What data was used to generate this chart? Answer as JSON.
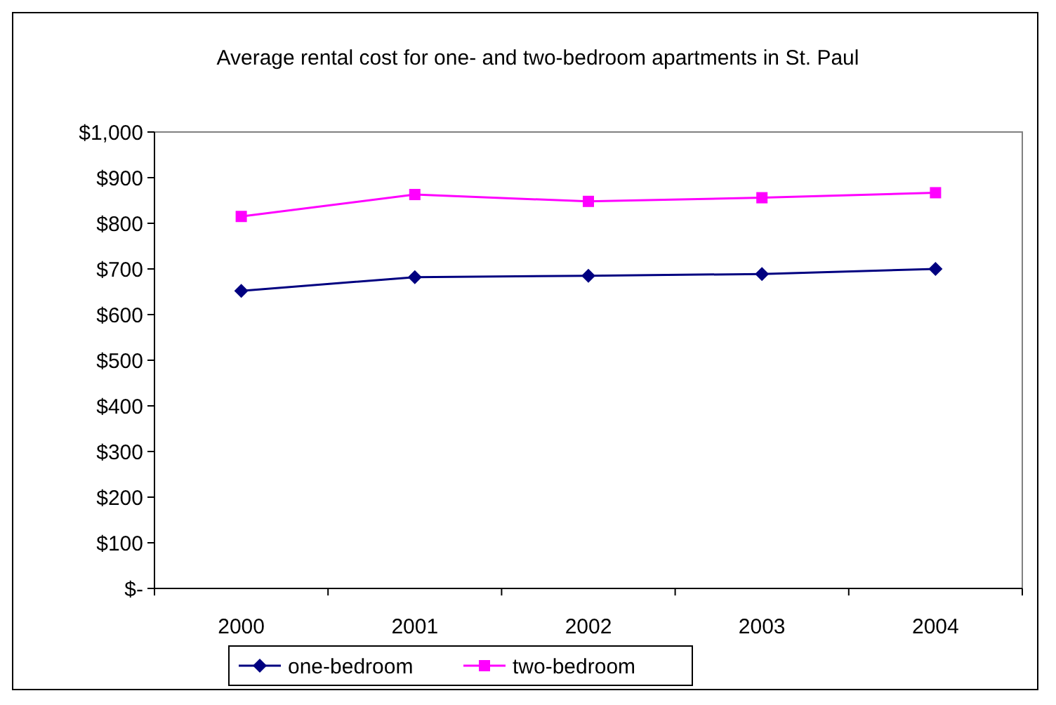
{
  "chart_data": {
    "type": "line",
    "title": "Average rental cost for one- and two-bedroom apartments in St. Paul",
    "categories": [
      "2000",
      "2001",
      "2002",
      "2003",
      "2004"
    ],
    "series": [
      {
        "name": "one-bedroom",
        "color": "#000080",
        "values": [
          652,
          682,
          685,
          689,
          700
        ],
        "marker": "diamond"
      },
      {
        "name": "two-bedroom",
        "color": "#ff00ff",
        "values": [
          815,
          863,
          848,
          856,
          867
        ],
        "marker": "square"
      }
    ],
    "ylim": [
      0,
      1000
    ],
    "yticks": [
      {
        "value": 0,
        "label": "$-"
      },
      {
        "value": 100,
        "label": "$100"
      },
      {
        "value": 200,
        "label": "$200"
      },
      {
        "value": 300,
        "label": "$300"
      },
      {
        "value": 400,
        "label": "$400"
      },
      {
        "value": 500,
        "label": "$500"
      },
      {
        "value": 600,
        "label": "$600"
      },
      {
        "value": 700,
        "label": "$700"
      },
      {
        "value": 800,
        "label": "$800"
      },
      {
        "value": 900,
        "label": "$900"
      },
      {
        "value": 1000,
        "label": "$1,000"
      }
    ],
    "grid": false,
    "legend": "bottom"
  }
}
